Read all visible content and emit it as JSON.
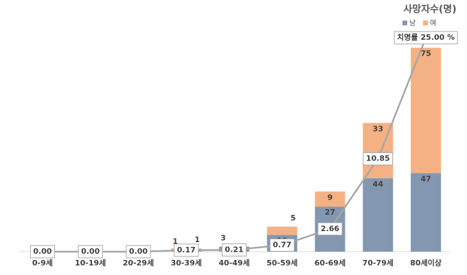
{
  "chart_data": {
    "type": "bar",
    "legend_title": "사망자수(명)",
    "categories": [
      "0-9세",
      "10-19세",
      "20-29세",
      "30-39세",
      "40-49세",
      "50-59세",
      "60-69세",
      "70-79세",
      "80세이상"
    ],
    "series": [
      {
        "name": "남",
        "color": "#8497b0",
        "values": [
          0,
          0,
          0,
          1,
          3,
          10,
          27,
          44,
          47
        ]
      },
      {
        "name": "여",
        "color": "#f4b183",
        "values": [
          0,
          0,
          0,
          1,
          0,
          5,
          9,
          33,
          75
        ]
      },
      {
        "name": "치명률",
        "color": "#a6a6a6",
        "axis": "y2",
        "type": "line",
        "values": [
          0,
          0,
          0,
          0.17,
          0.21,
          0.77,
          2.66,
          10.85,
          25
        ],
        "value_labels": [
          "0.00",
          "0.00",
          "0.00",
          "0.17",
          "0.21",
          "0.77",
          "2.66",
          "10.85",
          "25.00 %"
        ]
      }
    ],
    "ylim": [
      0,
      128
    ],
    "y2lim": [
      0,
      25
    ],
    "legend": "top-right"
  }
}
